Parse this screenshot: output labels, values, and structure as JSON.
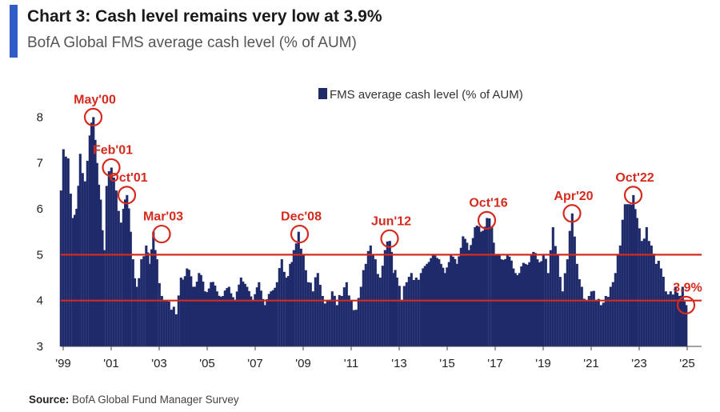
{
  "header": {
    "title": "Chart 3: Cash level remains very low at 3.9%",
    "subtitle": "BofA Global FMS average cash level (% of AUM)"
  },
  "source": {
    "label": "Source:",
    "text": "BofA Global Fund Manager Survey"
  },
  "colors": {
    "bar": "#1f2a6b",
    "line": "#d52b1e",
    "accent": "#2f5cc7"
  },
  "chart_data": {
    "type": "bar",
    "title": "Chart 3: Cash level remains very low at 3.9%",
    "subtitle": "BofA Global FMS average cash level (% of AUM)",
    "xlabel": "",
    "ylabel": "",
    "ylim": [
      3,
      8.6
    ],
    "yticks": [
      3,
      4,
      5,
      6,
      7,
      8
    ],
    "xlim": [
      1999.0,
      2025.7
    ],
    "xticks": [
      {
        "x": 1999.1,
        "label": "'99"
      },
      {
        "x": 2001.1,
        "label": "'01"
      },
      {
        "x": 2003.1,
        "label": "'03"
      },
      {
        "x": 2005.1,
        "label": "'05"
      },
      {
        "x": 2007.1,
        "label": "'07"
      },
      {
        "x": 2009.1,
        "label": "'09"
      },
      {
        "x": 2011.1,
        "label": "'11"
      },
      {
        "x": 2013.1,
        "label": "'13"
      },
      {
        "x": 2015.1,
        "label": "'15"
      },
      {
        "x": 2017.1,
        "label": "'17"
      },
      {
        "x": 2019.1,
        "label": "'19"
      },
      {
        "x": 2021.1,
        "label": "'21"
      },
      {
        "x": 2023.1,
        "label": "'23"
      },
      {
        "x": 2025.1,
        "label": "'25"
      }
    ],
    "legend": {
      "label": "FMS average cash level (% of AUM)",
      "position": "top-center"
    },
    "reference_lines": [
      {
        "y": 5.0
      },
      {
        "y": 4.0
      }
    ],
    "series": [
      {
        "name": "FMS average cash level (% of AUM)",
        "anchors": [
          [
            1999.0,
            6.4
          ],
          [
            1999.1,
            7.3
          ],
          [
            1999.3,
            7.1
          ],
          [
            1999.5,
            5.8
          ],
          [
            1999.65,
            6.0
          ],
          [
            1999.8,
            7.2
          ],
          [
            2000.0,
            6.6
          ],
          [
            2000.2,
            7.6
          ],
          [
            2000.35,
            8.0
          ],
          [
            2000.5,
            7.0
          ],
          [
            2000.65,
            6.2
          ],
          [
            2000.8,
            5.1
          ],
          [
            2000.9,
            6.5
          ],
          [
            2001.1,
            6.9
          ],
          [
            2001.3,
            6.4
          ],
          [
            2001.5,
            5.7
          ],
          [
            2001.6,
            6.0
          ],
          [
            2001.75,
            6.3
          ],
          [
            2001.9,
            5.5
          ],
          [
            2002.0,
            4.9
          ],
          [
            2002.15,
            4.3
          ],
          [
            2002.35,
            4.9
          ],
          [
            2002.55,
            5.2
          ],
          [
            2002.7,
            4.8
          ],
          [
            2002.85,
            5.5
          ],
          [
            2003.0,
            4.9
          ],
          [
            2003.2,
            4.1
          ],
          [
            2003.4,
            4.0
          ],
          [
            2003.6,
            3.8
          ],
          [
            2003.8,
            3.7
          ],
          [
            2004.0,
            4.5
          ],
          [
            2004.25,
            4.7
          ],
          [
            2004.5,
            4.3
          ],
          [
            2004.75,
            4.6
          ],
          [
            2005.0,
            4.2
          ],
          [
            2005.25,
            4.4
          ],
          [
            2005.5,
            4.2
          ],
          [
            2005.75,
            4.1
          ],
          [
            2006.0,
            4.3
          ],
          [
            2006.25,
            4.0
          ],
          [
            2006.5,
            4.5
          ],
          [
            2006.75,
            4.3
          ],
          [
            2007.0,
            4.0
          ],
          [
            2007.25,
            4.4
          ],
          [
            2007.5,
            3.9
          ],
          [
            2007.75,
            4.2
          ],
          [
            2008.0,
            4.4
          ],
          [
            2008.2,
            4.9
          ],
          [
            2008.4,
            4.5
          ],
          [
            2008.55,
            4.8
          ],
          [
            2008.7,
            5.1
          ],
          [
            2008.9,
            5.5
          ],
          [
            2009.1,
            5.0
          ],
          [
            2009.3,
            4.4
          ],
          [
            2009.5,
            4.2
          ],
          [
            2009.7,
            4.6
          ],
          [
            2009.9,
            4.1
          ],
          [
            2010.1,
            4.0
          ],
          [
            2010.3,
            4.2
          ],
          [
            2010.5,
            3.9
          ],
          [
            2010.7,
            4.1
          ],
          [
            2010.9,
            4.4
          ],
          [
            2011.1,
            4.0
          ],
          [
            2011.3,
            3.8
          ],
          [
            2011.5,
            4.3
          ],
          [
            2011.7,
            4.8
          ],
          [
            2011.9,
            5.2
          ],
          [
            2012.1,
            4.9
          ],
          [
            2012.3,
            4.5
          ],
          [
            2012.5,
            5.1
          ],
          [
            2012.7,
            5.3
          ],
          [
            2012.85,
            4.6
          ],
          [
            2013.0,
            4.5
          ],
          [
            2013.2,
            4.0
          ],
          [
            2013.4,
            4.4
          ],
          [
            2013.6,
            4.6
          ],
          [
            2013.8,
            4.5
          ],
          [
            2014.0,
            4.6
          ],
          [
            2014.25,
            4.8
          ],
          [
            2014.5,
            5.0
          ],
          [
            2014.75,
            4.9
          ],
          [
            2015.0,
            4.6
          ],
          [
            2015.25,
            5.0
          ],
          [
            2015.5,
            4.8
          ],
          [
            2015.75,
            5.4
          ],
          [
            2016.0,
            5.1
          ],
          [
            2016.25,
            5.6
          ],
          [
            2016.5,
            5.5
          ],
          [
            2016.75,
            5.8
          ],
          [
            2016.95,
            5.6
          ],
          [
            2017.1,
            5.0
          ],
          [
            2017.35,
            4.9
          ],
          [
            2017.6,
            5.0
          ],
          [
            2017.85,
            4.7
          ],
          [
            2018.1,
            4.6
          ],
          [
            2018.35,
            4.8
          ],
          [
            2018.6,
            5.0
          ],
          [
            2018.85,
            4.9
          ],
          [
            2019.1,
            5.0
          ],
          [
            2019.3,
            4.6
          ],
          [
            2019.5,
            5.6
          ],
          [
            2019.7,
            5.0
          ],
          [
            2019.9,
            4.2
          ],
          [
            2020.1,
            4.9
          ],
          [
            2020.3,
            5.9
          ],
          [
            2020.5,
            4.8
          ],
          [
            2020.7,
            4.3
          ],
          [
            2020.9,
            4.0
          ],
          [
            2021.1,
            4.2
          ],
          [
            2021.3,
            4.0
          ],
          [
            2021.5,
            3.9
          ],
          [
            2021.7,
            4.1
          ],
          [
            2021.9,
            4.3
          ],
          [
            2022.1,
            4.6
          ],
          [
            2022.3,
            5.2
          ],
          [
            2022.5,
            6.1
          ],
          [
            2022.7,
            6.1
          ],
          [
            2022.85,
            6.3
          ],
          [
            2023.0,
            5.8
          ],
          [
            2023.2,
            5.3
          ],
          [
            2023.4,
            5.6
          ],
          [
            2023.6,
            5.2
          ],
          [
            2023.8,
            4.8
          ],
          [
            2024.0,
            4.7
          ],
          [
            2024.2,
            4.2
          ],
          [
            2024.4,
            4.2
          ],
          [
            2024.6,
            4.3
          ],
          [
            2024.75,
            4.1
          ],
          [
            2024.9,
            4.3
          ],
          [
            2025.05,
            3.9
          ]
        ]
      }
    ],
    "annotations": [
      {
        "label": "May'00",
        "x": 2000.35,
        "y": 8.0
      },
      {
        "label": "Feb'01",
        "x": 2001.1,
        "y": 6.9
      },
      {
        "label": "Oct'01",
        "x": 2001.75,
        "y": 6.3
      },
      {
        "label": "Mar'03",
        "x": 2003.2,
        "y": 5.45
      },
      {
        "label": "Dec'08",
        "x": 2008.95,
        "y": 5.45
      },
      {
        "label": "Jun'12",
        "x": 2012.7,
        "y": 5.35
      },
      {
        "label": "Oct'16",
        "x": 2016.75,
        "y": 5.75
      },
      {
        "label": "Apr'20",
        "x": 2020.3,
        "y": 5.9
      },
      {
        "label": "Oct'22",
        "x": 2022.85,
        "y": 6.3
      },
      {
        "label": "3.9%",
        "x": 2025.05,
        "y": 3.9
      }
    ]
  }
}
